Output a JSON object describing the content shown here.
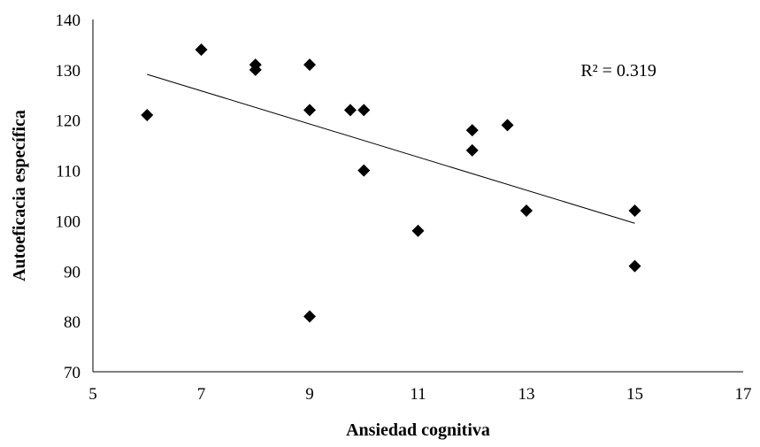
{
  "chart_data": {
    "type": "scatter",
    "xlabel": "Ansiedad cognitiva",
    "ylabel": "Autoeficacia específica",
    "xlim": [
      5,
      17
    ],
    "ylim": [
      70,
      140
    ],
    "x_ticks": [
      5,
      7,
      9,
      11,
      13,
      15,
      17
    ],
    "y_ticks": [
      70,
      80,
      90,
      100,
      110,
      120,
      130,
      140
    ],
    "grid": false,
    "legend": "none",
    "series": [
      {
        "marker": "diamond",
        "color": "#000000",
        "points": [
          {
            "x": 6,
            "y": 121
          },
          {
            "x": 7,
            "y": 134
          },
          {
            "x": 8,
            "y": 131
          },
          {
            "x": 8,
            "y": 130
          },
          {
            "x": 9,
            "y": 131
          },
          {
            "x": 9,
            "y": 122
          },
          {
            "x": 9,
            "y": 81
          },
          {
            "x": 9.75,
            "y": 122
          },
          {
            "x": 10,
            "y": 122
          },
          {
            "x": 10,
            "y": 110
          },
          {
            "x": 11,
            "y": 98
          },
          {
            "x": 12,
            "y": 118
          },
          {
            "x": 12,
            "y": 114
          },
          {
            "x": 12.65,
            "y": 119
          },
          {
            "x": 13,
            "y": 102
          },
          {
            "x": 15,
            "y": 102
          },
          {
            "x": 15,
            "y": 91
          }
        ]
      }
    ],
    "trendline": {
      "type": "linear",
      "from": {
        "x": 6,
        "y": 129.1
      },
      "to": {
        "x": 15,
        "y": 99.5
      },
      "color": "#000000"
    },
    "annotations": [
      {
        "text": "R² = 0.319",
        "x": 14.7,
        "y": 130
      }
    ]
  }
}
